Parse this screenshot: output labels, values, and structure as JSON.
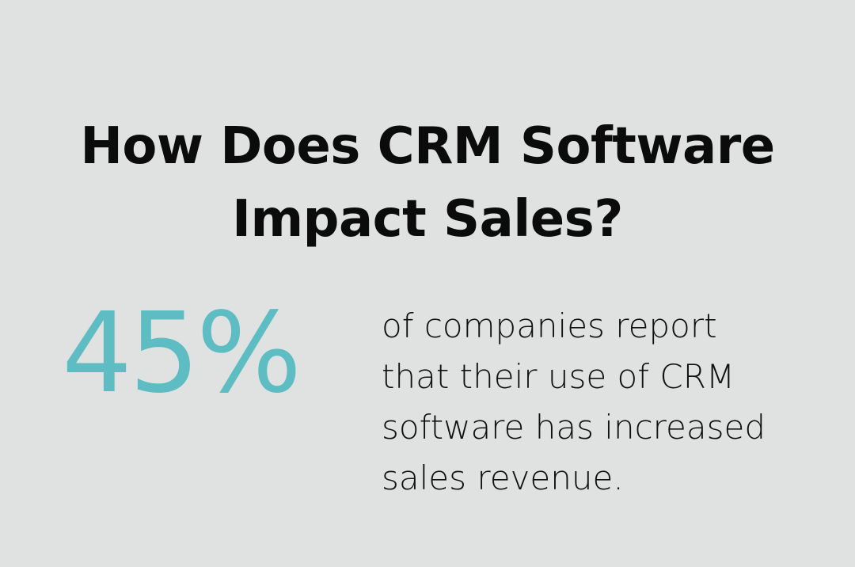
{
  "title": {
    "line1": "How Does CRM Software",
    "line2": "Impact Sales?"
  },
  "stat": {
    "value": "45%",
    "description_lines": [
      "of companies report",
      "that their use of CRM",
      "software has increased",
      "sales revenue."
    ]
  },
  "colors": {
    "background": "#dfe2e1",
    "accent": "#5ebdc3",
    "text": "#111111"
  }
}
